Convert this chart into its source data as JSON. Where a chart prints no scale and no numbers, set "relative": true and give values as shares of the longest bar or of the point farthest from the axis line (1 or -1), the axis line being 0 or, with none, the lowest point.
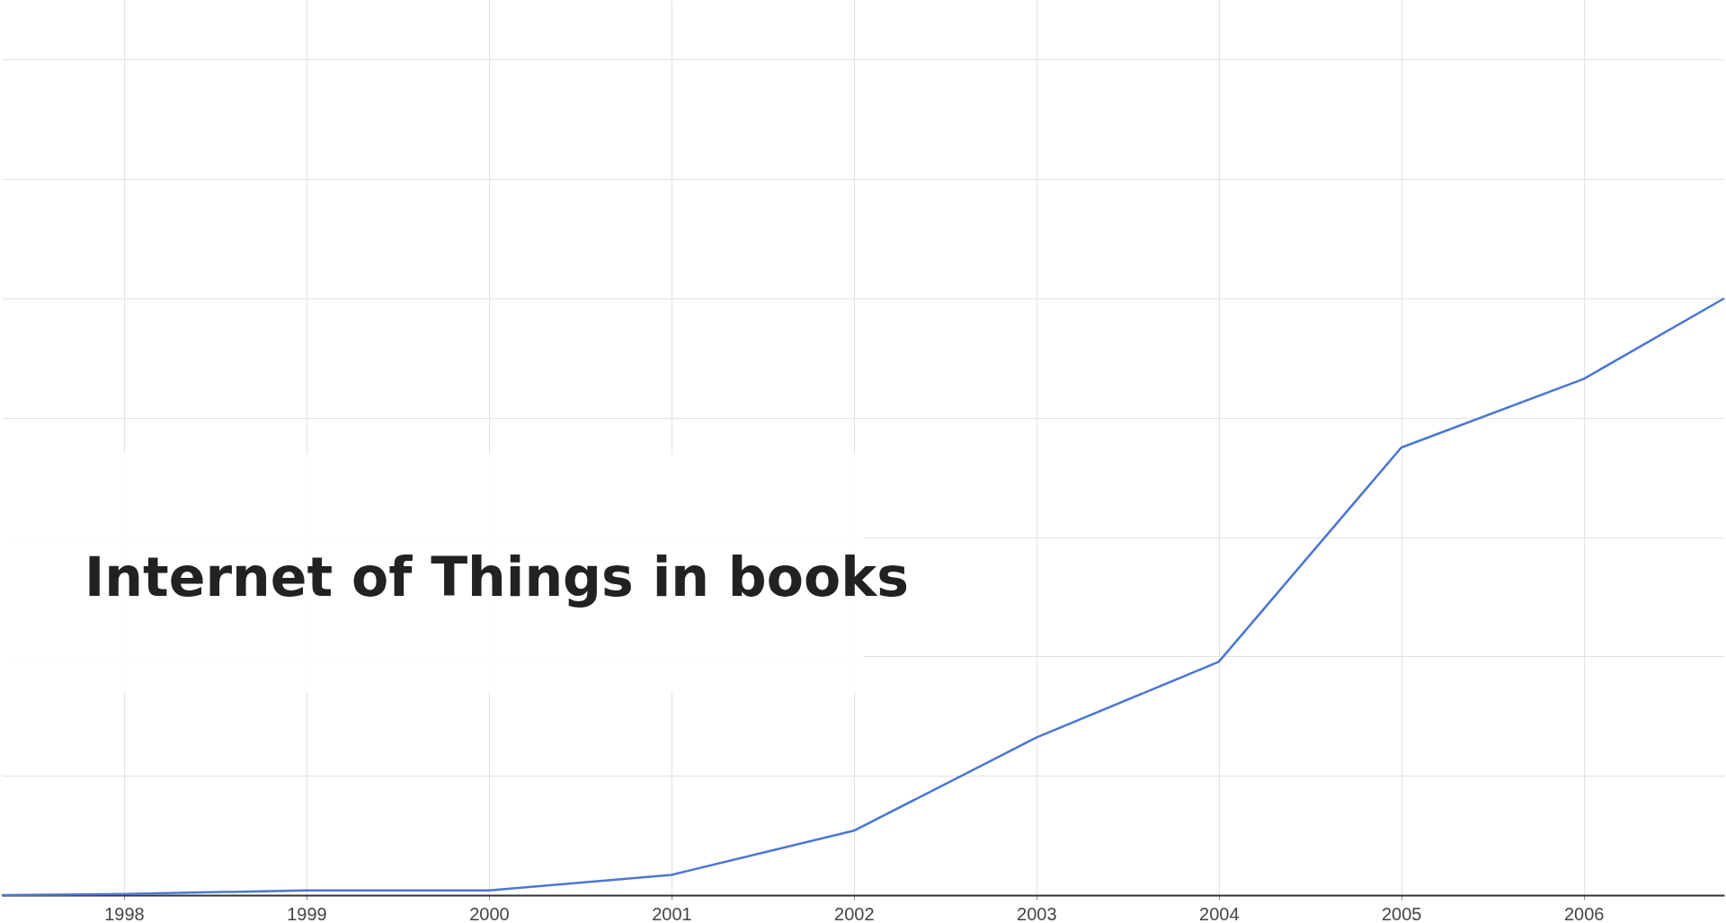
{
  "chart_data": {
    "type": "line",
    "title": "Internet of Things in books",
    "relative": true,
    "x": [
      1997.33,
      1998,
      1999,
      2000,
      2001,
      2002,
      2003,
      2004,
      2005,
      2006,
      2006.77
    ],
    "series": [
      {
        "color": "#4a76d4",
        "values": [
          0,
          0.002,
          0.008,
          0.008,
          0.034,
          0.108,
          0.264,
          0.391,
          0.75,
          0.865,
          1
        ]
      }
    ],
    "xlim": [
      1997.33,
      2006.77
    ],
    "xticks": [
      1998,
      1999,
      2000,
      2001,
      2002,
      2003,
      2004,
      2005,
      2006
    ],
    "grid": true,
    "marker": "none",
    "line_style": "solid"
  }
}
